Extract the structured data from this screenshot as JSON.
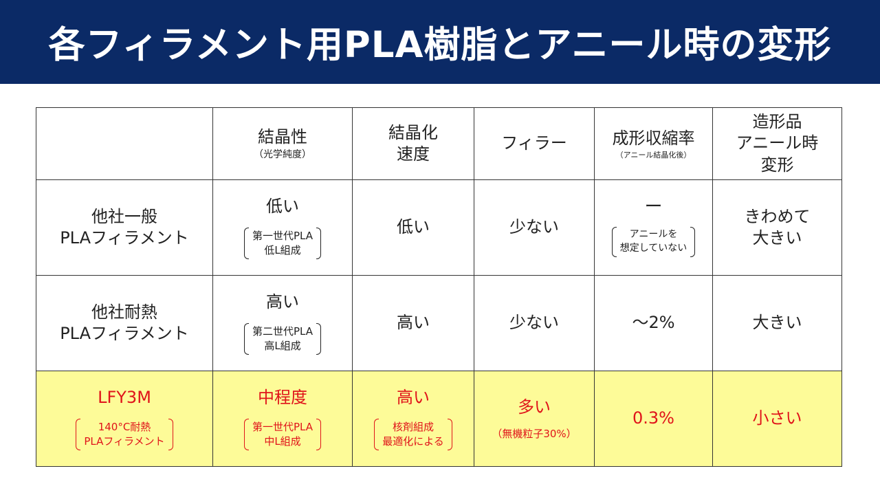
{
  "title": "各フィラメント用PLA樹脂とアニール時の変形",
  "header": {
    "col1": "結晶性",
    "col1_sub": "（光学純度）",
    "col2_line1": "結晶化",
    "col2_line2": "速度",
    "col3": "フィラー",
    "col4": "成形収縮率",
    "col4_sub": "（アニール結晶化後）",
    "col5_line1": "造形品",
    "col5_line2": "アニール時",
    "col5_line3": "変形"
  },
  "rows": [
    {
      "name_line1": "他社一般",
      "name_line2": "PLAフィラメント",
      "crystallinity": "低い",
      "crystallinity_note1": "第一世代PLA",
      "crystallinity_note2": "低L組成",
      "speed": "低い",
      "filler": "少ない",
      "shrinkage": "ー",
      "shrinkage_note1": "アニールを",
      "shrinkage_note2": "想定していない",
      "deform_line1": "きわめて",
      "deform_line2": "大きい"
    },
    {
      "name_line1": "他社耐熱",
      "name_line2": "PLAフィラメント",
      "crystallinity": "高い",
      "crystallinity_note1": "第二世代PLA",
      "crystallinity_note2": "高L組成",
      "speed": "高い",
      "filler": "少ない",
      "shrinkage": "～2%",
      "deform": "大きい"
    },
    {
      "name": "LFY3M",
      "name_note1": "140°C耐熱",
      "name_note2": "PLAフィラメント",
      "crystallinity": "中程度",
      "crystallinity_note1": "第一世代PLA",
      "crystallinity_note2": "中L組成",
      "speed": "高い",
      "speed_note1": "核剤組成",
      "speed_note2": "最適化による",
      "filler": "多い",
      "filler_note": "（無機粒子30%）",
      "shrinkage": "0.3%",
      "deform": "小さい"
    }
  ],
  "colors": {
    "title_bg": "#0b2a66",
    "highlight_bg": "#fdfb98",
    "highlight_text": "#e0131a"
  }
}
